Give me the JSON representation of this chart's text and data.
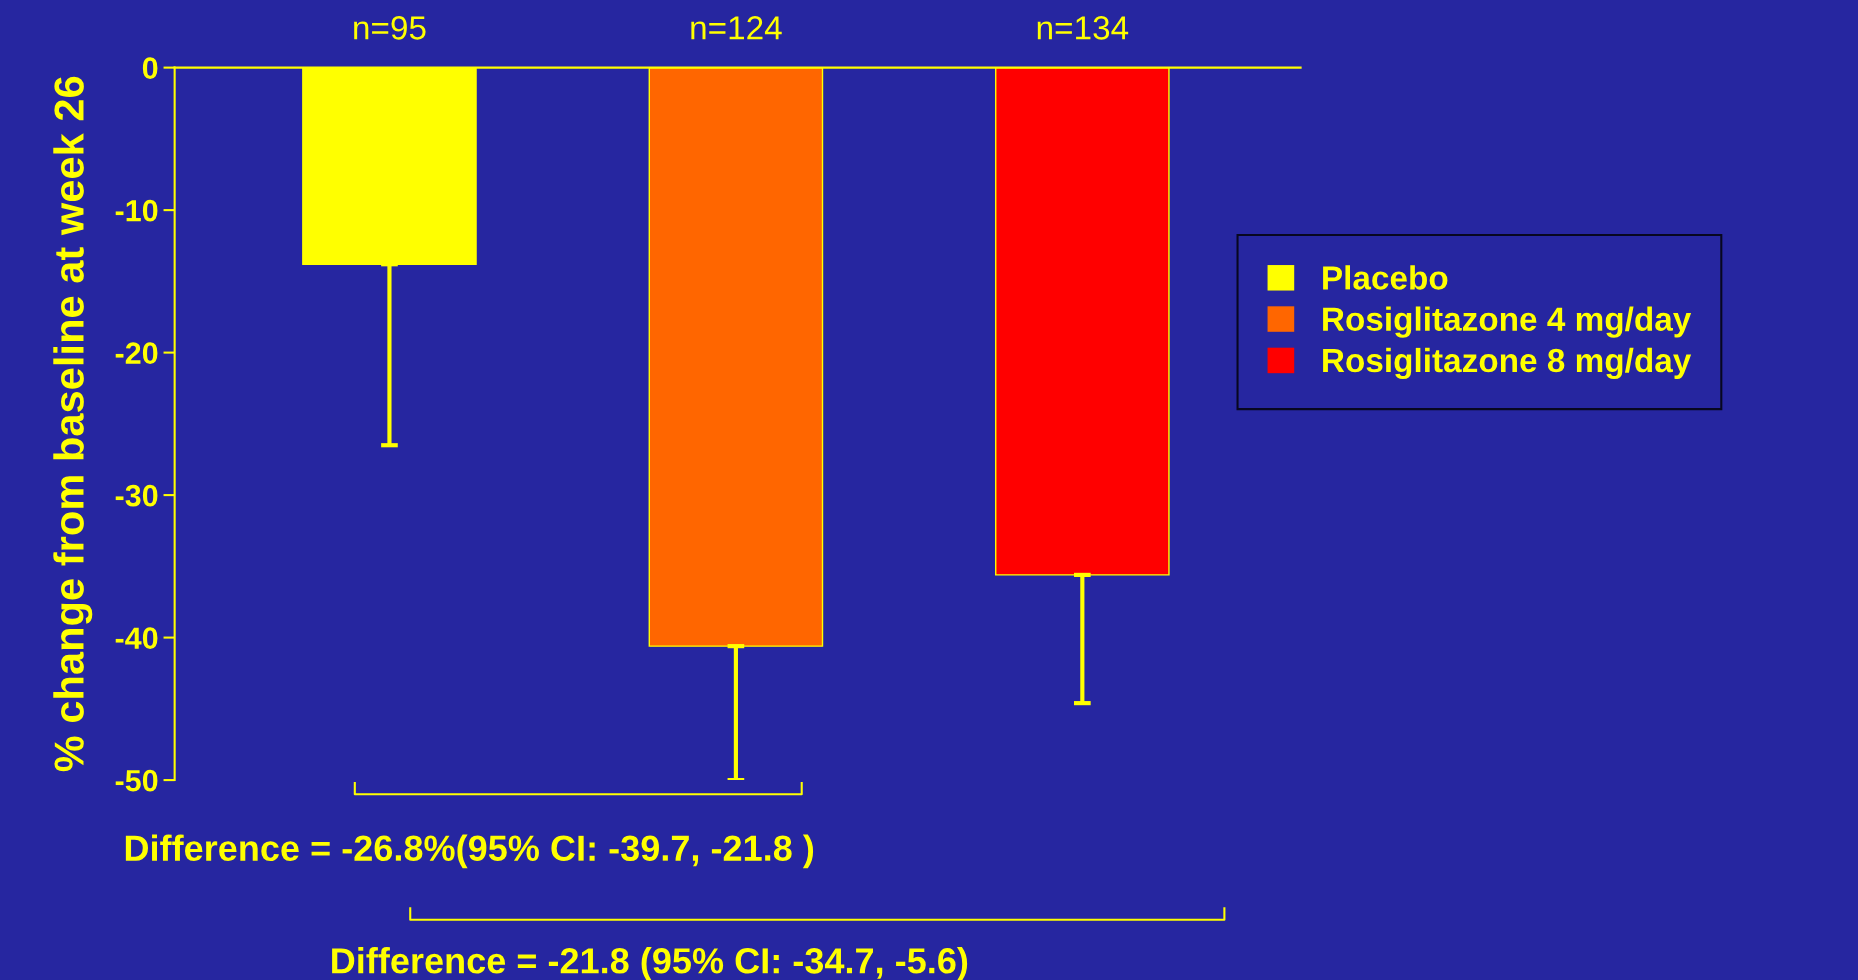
{
  "chart_data": {
    "type": "bar",
    "ylabel": "% change from baseline at week 26",
    "categories": [
      null,
      null,
      null
    ],
    "series": [
      {
        "name": "Placebo",
        "color": "#ffff00",
        "values": [
          -13.8,
          null,
          null
        ],
        "errors": [
          [
            -26.5,
            -13.8
          ],
          null,
          null
        ]
      },
      {
        "name": "Rosiglitazone 4 mg/day",
        "color": "#ff6600",
        "values": [
          null,
          -40.6,
          null
        ],
        "errors": [
          null,
          [
            -50,
            -40.6
          ],
          null
        ]
      },
      {
        "name": "Rosiglitazone 8 mg/day",
        "color": "#ff0000",
        "values": [
          null,
          null,
          -35.6
        ],
        "errors": [
          null,
          null,
          [
            -44.6,
            -35.6
          ]
        ]
      }
    ],
    "ylim": [
      -50,
      0
    ],
    "yticks": [
      -50,
      -40,
      -30,
      -20,
      -10,
      0
    ],
    "annotations": [
      "n=95",
      "n=124",
      "n=134",
      "Difference = -26.8%(95% CI: -39.7, -21.8 )",
      "Difference = -21.8 (95% CI: -34.7, -5.6)"
    ],
    "legend": "right",
    "grid": false
  }
}
